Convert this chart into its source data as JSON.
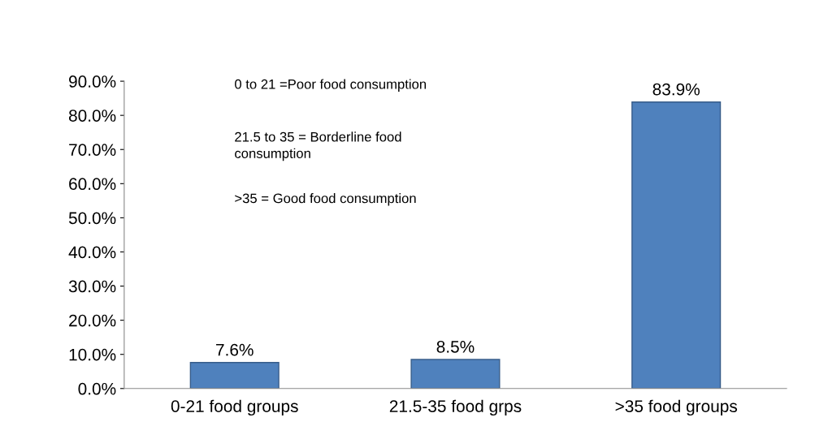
{
  "chart_data": {
    "type": "bar",
    "categories": [
      "0-21 food groups",
      "21.5-35 food grps",
      ">35 food groups"
    ],
    "values": [
      7.6,
      8.5,
      83.9
    ],
    "value_labels": [
      "7.6%",
      "8.5%",
      "83.9%"
    ],
    "color": "#4f81bd",
    "ylim": [
      0,
      90
    ],
    "yticks": [
      {
        "value": 0,
        "label": "0.0%"
      },
      {
        "value": 10,
        "label": "10.0%"
      },
      {
        "value": 20,
        "label": "20.0%"
      },
      {
        "value": 30,
        "label": "30.0%"
      },
      {
        "value": 40,
        "label": "40.0%"
      },
      {
        "value": 50,
        "label": "50.0%"
      },
      {
        "value": 60,
        "label": "60.0%"
      },
      {
        "value": 70,
        "label": "70.0%"
      },
      {
        "value": 80,
        "label": "80.0%"
      },
      {
        "value": 90,
        "label": "90.0%"
      }
    ],
    "annotations": [
      "0 to 21 =Poor food consumption",
      "21.5 to 35 = Borderline food\nconsumption",
      ">35 = Good food consumption"
    ],
    "grid": false
  }
}
